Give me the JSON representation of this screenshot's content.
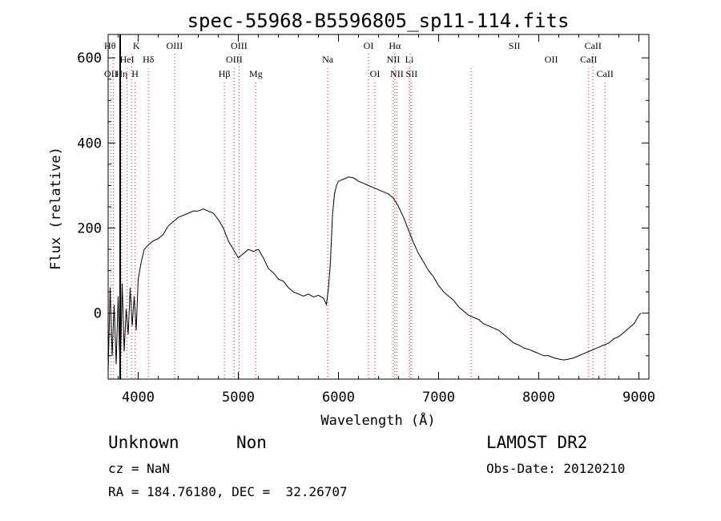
{
  "chart_data": {
    "type": "line",
    "title": "spec-55968-B5596805_sp11-114.fits",
    "xlabel": "Wavelength (Å)",
    "ylabel": "Flux (relative)",
    "xlim": [
      3700,
      9100
    ],
    "ylim": [
      -155,
      655
    ],
    "xticks": [
      4000,
      5000,
      6000,
      7000,
      8000,
      9000
    ],
    "yticks": [
      0,
      200,
      400,
      600
    ],
    "grid": false,
    "series": [
      {
        "x": [
          3700,
          3720,
          3740,
          3760,
          3780,
          3800,
          3820,
          3840,
          3860,
          3880,
          3900,
          3920,
          3940,
          3960,
          3980,
          4000,
          4030,
          4060,
          4100,
          4150,
          4200,
          4250,
          4300,
          4350,
          4400,
          4450,
          4500,
          4550,
          4600,
          4650,
          4700,
          4750,
          4800,
          4850,
          4900,
          4950,
          5000,
          5050,
          5100,
          5150,
          5200,
          5250,
          5300,
          5350,
          5400,
          5450,
          5500,
          5550,
          5600,
          5650,
          5700,
          5750,
          5800,
          5850,
          5880,
          5900,
          5920,
          5940,
          5960,
          5980,
          6000,
          6050,
          6100,
          6150,
          6200,
          6250,
          6300,
          6350,
          6400,
          6450,
          6500,
          6550,
          6600,
          6650,
          6700,
          6750,
          6800,
          6850,
          6900,
          6950,
          7000,
          7050,
          7100,
          7150,
          7200,
          7250,
          7300,
          7350,
          7400,
          7450,
          7500,
          7550,
          7600,
          7650,
          7700,
          7750,
          7800,
          7850,
          7900,
          7950,
          8000,
          8050,
          8100,
          8150,
          8200,
          8250,
          8300,
          8350,
          8400,
          8450,
          8500,
          8550,
          8600,
          8650,
          8700,
          8750,
          8800,
          8850,
          8900,
          8950,
          9000,
          9020
        ],
        "y": [
          -140,
          60,
          -100,
          20,
          -120,
          40,
          -150,
          70,
          -90,
          10,
          -50,
          60,
          -30,
          40,
          -40,
          80,
          120,
          150,
          160,
          170,
          175,
          185,
          205,
          215,
          225,
          230,
          235,
          240,
          240,
          245,
          240,
          235,
          220,
          200,
          170,
          150,
          130,
          140,
          150,
          145,
          150,
          130,
          105,
          95,
          80,
          75,
          60,
          50,
          45,
          40,
          45,
          38,
          42,
          35,
          20,
          60,
          120,
          230,
          280,
          300,
          310,
          315,
          320,
          318,
          310,
          305,
          300,
          295,
          290,
          285,
          280,
          270,
          250,
          225,
          195,
          165,
          140,
          120,
          100,
          85,
          65,
          50,
          40,
          30,
          15,
          5,
          -5,
          -10,
          -15,
          -25,
          -30,
          -35,
          -40,
          -50,
          -60,
          -70,
          -75,
          -82,
          -85,
          -90,
          -95,
          -100,
          -100,
          -105,
          -108,
          -110,
          -108,
          -105,
          -100,
          -95,
          -90,
          -85,
          -80,
          -75,
          -70,
          -60,
          -55,
          -45,
          -35,
          -25,
          -5,
          0
        ]
      }
    ],
    "lines": [
      {
        "name": "Hθ",
        "x": 3750,
        "row": 0,
        "off": -4
      },
      {
        "name": "K",
        "x": 3934,
        "row": 0,
        "off": 6
      },
      {
        "name": "OIII",
        "x": 4363,
        "row": 0,
        "off": 0
      },
      {
        "name": "OIII",
        "x": 5007,
        "row": 0,
        "off": 0
      },
      {
        "name": "OI",
        "x": 6300,
        "row": 0,
        "off": 0
      },
      {
        "name": "Hα",
        "x": 6563,
        "row": 0,
        "off": 0
      },
      {
        "name": "SII",
        "x": 6717,
        "row": 0,
        "off": 130
      },
      {
        "name": "CaII",
        "x": 8542,
        "row": 0,
        "off": 0
      },
      {
        "name": "HeI",
        "x": 3889,
        "row": 1,
        "off": 0
      },
      {
        "name": "Hδ",
        "x": 4102,
        "row": 1,
        "off": 0
      },
      {
        "name": "OIII",
        "x": 4959,
        "row": 1,
        "off": 0
      },
      {
        "name": "Na",
        "x": 5893,
        "row": 1,
        "off": 0
      },
      {
        "name": "NII",
        "x": 6548,
        "row": 1,
        "off": 0
      },
      {
        "name": "Li",
        "x": 6708,
        "row": 1,
        "off": 0
      },
      {
        "name": "OII",
        "x": 7325,
        "row": 1,
        "off": 100
      },
      {
        "name": "CaII",
        "x": 8498,
        "row": 1,
        "off": 0
      },
      {
        "name": "OII",
        "x": 3727,
        "row": 2,
        "off": 0
      },
      {
        "name": "Hη",
        "x": 3835,
        "row": 2,
        "off": 0
      },
      {
        "name": "H",
        "x": 3969,
        "row": 2,
        "off": 0
      },
      {
        "name": "Hβ",
        "x": 4861,
        "row": 2,
        "off": 0
      },
      {
        "name": "Mg",
        "x": 5175,
        "row": 2,
        "off": 0
      },
      {
        "name": "OI",
        "x": 6364,
        "row": 2,
        "off": 0
      },
      {
        "name": "NII",
        "x": 6583,
        "row": 2,
        "off": 0
      },
      {
        "name": "SII",
        "x": 6731,
        "row": 2,
        "off": 0
      },
      {
        "name": "CaII",
        "x": 8662,
        "row": 2,
        "off": 0
      }
    ],
    "marker_x": 3820
  },
  "info": {
    "class": "Unknown",
    "subclass": "Non",
    "cz": "cz = NaN",
    "coords": "RA = 184.76180, DEC =  32.26707",
    "survey": "LAMOST DR2",
    "obsdate": "Obs-Date: 20120210"
  }
}
